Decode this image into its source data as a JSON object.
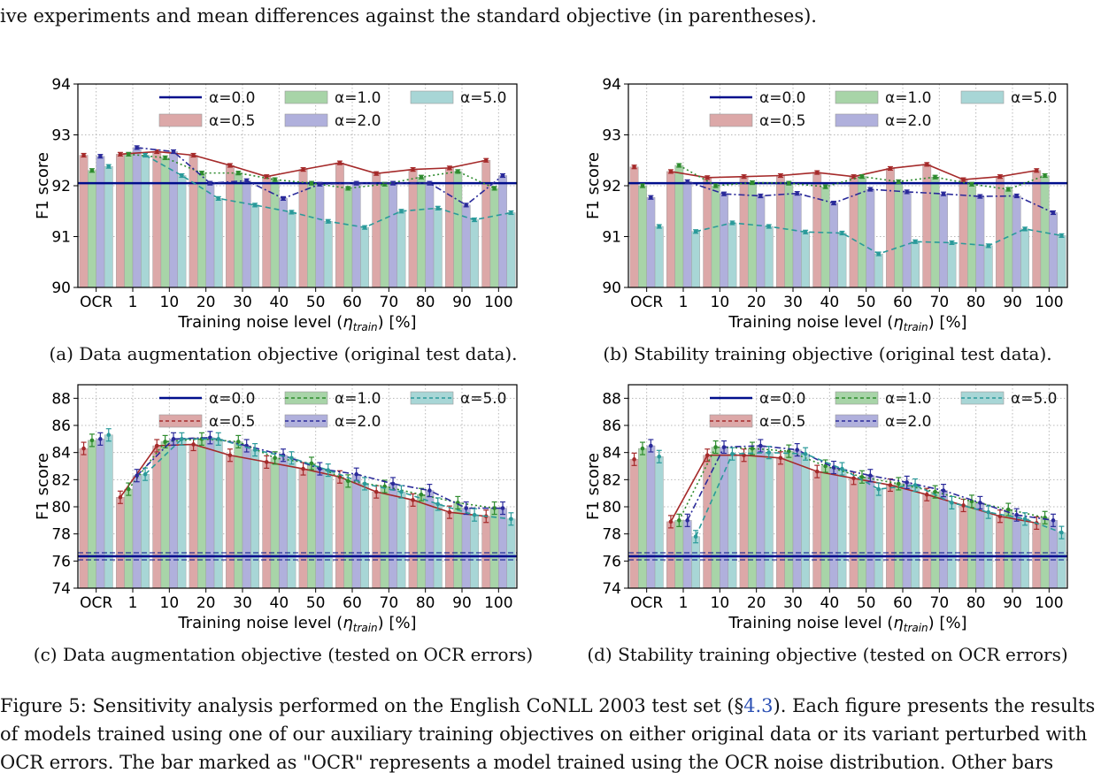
{
  "top_text": "ive experiments and mean differences against the standard objective (in parentheses).",
  "captions": [
    "(a) Data augmentation objective (original test data).",
    "(b) Stability training objective (original test data).",
    "(c) Data augmentation objective (tested on OCR errors)",
    "(d) Stability training objective (tested on OCR errors)"
  ],
  "figure_caption": {
    "line1_pre": "Figure 5: Sensitivity analysis performed on the English CoNLL 2003 test set (§",
    "line1_ref": "4.3",
    "line1_post": "). Each figure presents the results",
    "line2": "of models trained using one of our auxiliary training objectives on either original data or its variant perturbed with",
    "line3": "OCR errors. The bar marked as \"OCR\" represents a model trained using the OCR noise distribution. Other bars"
  },
  "colors": {
    "alpha_0_0": "#000e8c",
    "alpha_0_5": "#a52a2a",
    "alpha_1_0": "#2e8b2e",
    "alpha_2_0": "#2a2a9a",
    "alpha_5_0": "#2a9a9a",
    "bar_0_5": "#dca8a8",
    "bar_1_0": "#a8d4a8",
    "bar_2_0": "#b0b0dc",
    "bar_5_0": "#a8d6d6"
  },
  "chart_data": [
    {
      "type": "bar",
      "xlabel": "Training noise level (η_train) [%]",
      "xlabel_pre": "Training noise level (",
      "xlabel_sym": "η",
      "xlabel_sub": "train",
      "xlabel_post": ") [%]",
      "ylabel": "F1 score",
      "ylim": [
        90,
        94
      ],
      "yticks": [
        90,
        91,
        92,
        93,
        94
      ],
      "grid": true,
      "legend": "top",
      "categories": [
        "OCR",
        "1",
        "10",
        "20",
        "30",
        "40",
        "50",
        "60",
        "70",
        "80",
        "90",
        "100"
      ],
      "baseline": {
        "name": "α=0.0",
        "value": 92.05
      },
      "series": [
        {
          "name": "α=0.5",
          "values": [
            92.6,
            92.62,
            92.67,
            92.6,
            92.4,
            92.18,
            92.32,
            92.45,
            92.24,
            92.32,
            92.35,
            92.5
          ]
        },
        {
          "name": "α=1.0",
          "values": [
            92.3,
            92.62,
            92.55,
            92.25,
            92.25,
            92.12,
            92.05,
            91.95,
            92.03,
            92.17,
            92.28,
            91.95
          ]
        },
        {
          "name": "α=2.0",
          "values": [
            92.58,
            92.75,
            92.67,
            92.05,
            92.1,
            91.75,
            92.03,
            92.05,
            92.05,
            92.05,
            91.62,
            92.2
          ]
        },
        {
          "name": "α=5.0",
          "values": [
            92.38,
            92.6,
            92.2,
            91.75,
            91.62,
            91.48,
            91.3,
            91.18,
            91.5,
            91.56,
            91.33,
            91.47
          ]
        }
      ]
    },
    {
      "type": "bar",
      "xlabel": "Training noise level (η_train) [%]",
      "xlabel_pre": "Training noise level (",
      "xlabel_sym": "η",
      "xlabel_sub": "train",
      "xlabel_post": ") [%]",
      "ylabel": "F1 score",
      "ylim": [
        90,
        94
      ],
      "yticks": [
        90,
        91,
        92,
        93,
        94
      ],
      "grid": true,
      "legend": "top",
      "categories": [
        "OCR",
        "1",
        "10",
        "20",
        "30",
        "40",
        "50",
        "60",
        "70",
        "80",
        "90",
        "100"
      ],
      "baseline": {
        "name": "α=0.0",
        "value": 92.05
      },
      "series": [
        {
          "name": "α=0.5",
          "values": [
            92.37,
            92.28,
            92.16,
            92.18,
            92.2,
            92.26,
            92.18,
            92.34,
            92.42,
            92.12,
            92.18,
            92.3
          ]
        },
        {
          "name": "α=1.0",
          "values": [
            92.0,
            92.4,
            92.0,
            92.06,
            92.05,
            91.98,
            92.18,
            92.08,
            92.17,
            92.03,
            91.93,
            92.2
          ]
        },
        {
          "name": "α=2.0",
          "values": [
            91.77,
            92.08,
            91.84,
            91.8,
            91.85,
            91.66,
            91.93,
            91.88,
            91.84,
            91.79,
            91.8,
            91.47
          ]
        },
        {
          "name": "α=5.0",
          "values": [
            91.2,
            91.1,
            91.27,
            91.2,
            91.09,
            91.07,
            90.66,
            90.9,
            90.88,
            90.82,
            91.15,
            91.02
          ]
        }
      ]
    },
    {
      "type": "bar",
      "xlabel": "Training noise level (η_train) [%]",
      "xlabel_pre": "Training noise level (",
      "xlabel_sym": "η",
      "xlabel_sub": "train",
      "xlabel_post": ") [%]",
      "ylabel": "F1 score",
      "ylim": [
        74,
        89
      ],
      "yticks": [
        74,
        76,
        78,
        80,
        82,
        84,
        86,
        88
      ],
      "grid": true,
      "legend": "top",
      "categories": [
        "OCR",
        "1",
        "10",
        "20",
        "30",
        "40",
        "50",
        "60",
        "70",
        "80",
        "90",
        "100"
      ],
      "baseline": {
        "name": "α=0.0",
        "value": 76.35
      },
      "series": [
        {
          "name": "α=0.5",
          "values": [
            84.3,
            80.7,
            84.5,
            84.6,
            83.8,
            83.3,
            82.8,
            82.2,
            81.1,
            80.5,
            79.6,
            79.3
          ]
        },
        {
          "name": "α=1.0",
          "values": [
            84.9,
            81.3,
            84.8,
            85.0,
            84.8,
            83.6,
            83.2,
            81.9,
            81.5,
            80.9,
            80.3,
            79.9
          ]
        },
        {
          "name": "α=2.0",
          "values": [
            85.0,
            82.3,
            85.0,
            85.1,
            84.5,
            83.8,
            82.8,
            82.4,
            81.7,
            81.2,
            79.9,
            79.9
          ]
        },
        {
          "name": "α=5.0",
          "values": [
            85.3,
            82.4,
            85.0,
            85.0,
            84.2,
            83.6,
            82.7,
            81.7,
            81.1,
            80.2,
            79.4,
            79.1
          ]
        }
      ]
    },
    {
      "type": "bar",
      "xlabel": "Training noise level (η_train) [%]",
      "xlabel_pre": "Training noise level (",
      "xlabel_sym": "η",
      "xlabel_sub": "train",
      "xlabel_post": ") [%]",
      "ylabel": "F1 score",
      "ylim": [
        74,
        89
      ],
      "yticks": [
        74,
        76,
        78,
        80,
        82,
        84,
        86,
        88
      ],
      "grid": true,
      "legend": "top",
      "categories": [
        "OCR",
        "1",
        "10",
        "20",
        "30",
        "40",
        "50",
        "60",
        "70",
        "80",
        "90",
        "100"
      ],
      "baseline": {
        "name": "α=0.0",
        "value": 76.35
      },
      "series": [
        {
          "name": "α=0.5",
          "values": [
            83.5,
            78.9,
            83.8,
            83.8,
            83.6,
            82.6,
            82.1,
            81.6,
            80.9,
            80.1,
            79.3,
            78.8
          ]
        },
        {
          "name": "α=1.0",
          "values": [
            84.3,
            79.0,
            84.4,
            84.3,
            84.1,
            83.0,
            82.2,
            81.7,
            81.1,
            80.4,
            79.8,
            79.2
          ]
        },
        {
          "name": "α=2.0",
          "values": [
            84.5,
            79.0,
            84.4,
            84.5,
            84.2,
            82.9,
            82.3,
            81.8,
            81.2,
            80.3,
            79.4,
            79.0
          ]
        },
        {
          "name": "α=5.0",
          "values": [
            83.7,
            77.8,
            83.9,
            84.0,
            83.9,
            82.8,
            81.3,
            81.6,
            80.3,
            79.6,
            79.1,
            78.1
          ]
        }
      ]
    }
  ]
}
